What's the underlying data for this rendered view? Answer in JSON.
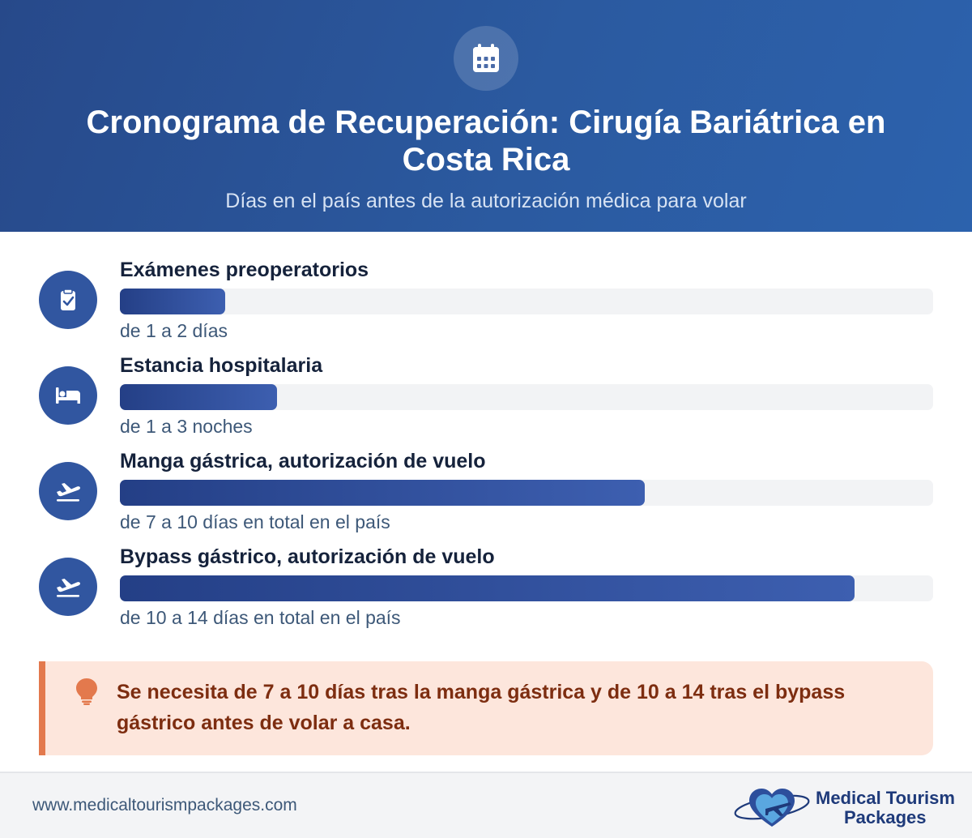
{
  "header": {
    "icon": "calendar-icon",
    "title": "Cronograma de Recuperación: Cirugía Bariátrica en Costa Rica",
    "subtitle": "Días en el país antes de la autorización médica para volar"
  },
  "chart_data": {
    "type": "bar",
    "orientation": "horizontal",
    "title": "Cronograma de Recuperación: Cirugía Bariátrica en Costa Rica",
    "subtitle": "Días en el país antes de la autorización médica para volar",
    "xlim": [
      0,
      15.5
    ],
    "grid": false,
    "categories": [
      "Exámenes preoperatorios",
      "Estancia hospitalaria",
      "Manga gástrica, autorización de vuelo",
      "Bypass gástrico, autorización de vuelo"
    ],
    "values": [
      2,
      3,
      10,
      14
    ],
    "value_labels": [
      "de 1 a 2 días",
      "de 1 a 3 noches",
      "de 7 a 10 días en total en el país",
      "de 10 a 14 días en total en el país"
    ],
    "icons": [
      "clipboard-check-icon",
      "bed-icon",
      "plane-departure-icon",
      "plane-departure-icon"
    ],
    "colors": {
      "bar_start": "#243f86",
      "bar_end": "#3d5fb0",
      "track": "#f2f3f5"
    }
  },
  "note": {
    "icon": "lightbulb-icon",
    "text": "Se necesita de 7 a 10 días tras la manga gástrica y de 10 a 14 tras el bypass gástrico antes de volar a casa."
  },
  "footer": {
    "url": "www.medicaltourismpackages.com",
    "logo_icon": "heart-plane-logo-icon",
    "logo_line1": "Medical Tourism",
    "logo_line2": "Packages"
  }
}
